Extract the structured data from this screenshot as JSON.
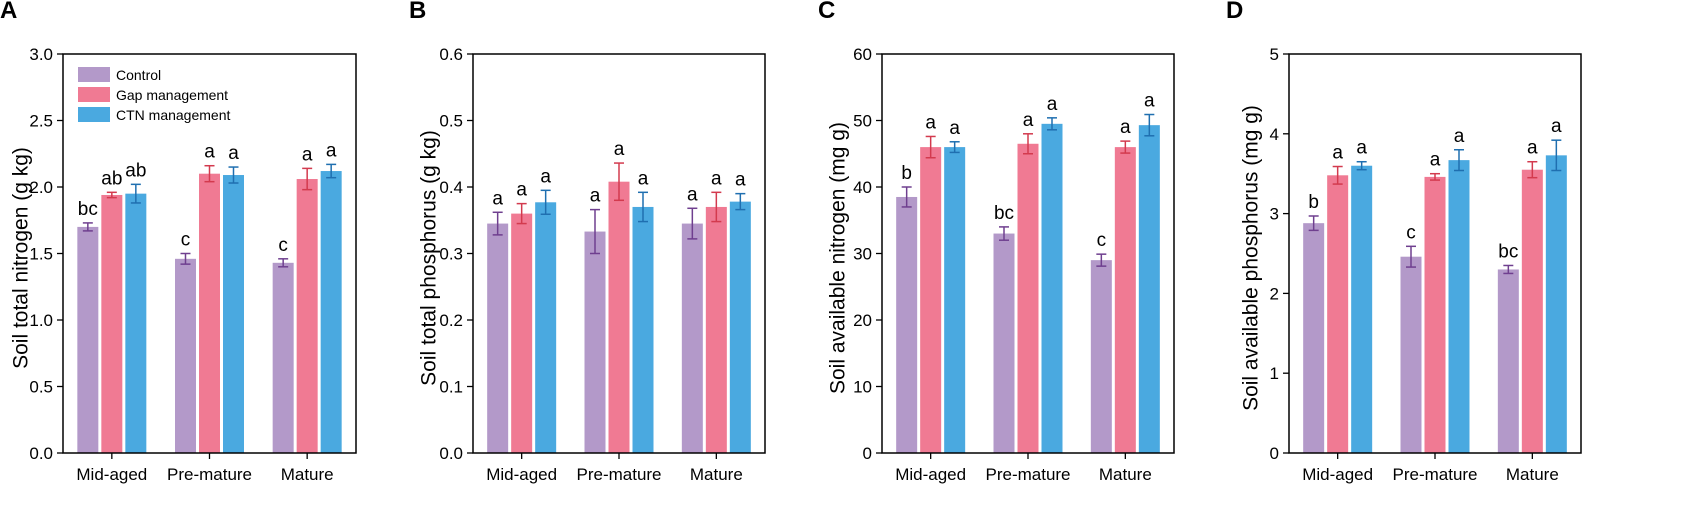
{
  "colors": {
    "control": "#b399c9",
    "control_err": "#6f3f8f",
    "gap": "#f07a93",
    "gap_err": "#d33a4e",
    "ctn": "#4aa9e0",
    "ctn_err": "#1f6fb0"
  },
  "legend": [
    "Control",
    "Gap management",
    "CTN management"
  ],
  "chart_data": [
    {
      "panel": "A",
      "type": "bar",
      "ylabel": "Soil total nitrogen (g kg)",
      "categories": [
        "Mid-aged",
        "Pre-mature",
        "Mature"
      ],
      "ylim": [
        0,
        3.0
      ],
      "yticks": [
        "0.0",
        "0.5",
        "1.0",
        "1.5",
        "2.0",
        "2.5",
        "3.0"
      ],
      "tick_step": 0.5,
      "series": [
        {
          "name": "Control",
          "values": [
            1.7,
            1.46,
            1.43
          ],
          "errors": [
            0.03,
            0.04,
            0.03
          ],
          "letters": [
            "bc",
            "c",
            "c"
          ]
        },
        {
          "name": "Gap management",
          "values": [
            1.94,
            2.1,
            2.06
          ],
          "errors": [
            0.02,
            0.06,
            0.08
          ],
          "letters": [
            "ab",
            "a",
            "a"
          ]
        },
        {
          "name": "CTN management",
          "values": [
            1.95,
            2.09,
            2.12
          ],
          "errors": [
            0.07,
            0.06,
            0.05
          ],
          "letters": [
            "ab",
            "a",
            "a"
          ]
        }
      ]
    },
    {
      "panel": "B",
      "type": "bar",
      "ylabel": "Soil total phosphorus (g kg)",
      "categories": [
        "Mid-aged",
        "Pre-mature",
        "Mature"
      ],
      "ylim": [
        0,
        0.6
      ],
      "yticks": [
        "0.0",
        "0.1",
        "0.2",
        "0.3",
        "0.4",
        "0.5",
        "0.6"
      ],
      "tick_step": 0.1,
      "series": [
        {
          "name": "Control",
          "values": [
            0.345,
            0.333,
            0.345
          ],
          "errors": [
            0.017,
            0.033,
            0.023
          ],
          "letters": [
            "a",
            "a",
            "a"
          ]
        },
        {
          "name": "Gap management",
          "values": [
            0.36,
            0.408,
            0.37
          ],
          "errors": [
            0.015,
            0.028,
            0.022
          ],
          "letters": [
            "a",
            "a",
            "a"
          ]
        },
        {
          "name": "CTN management",
          "values": [
            0.377,
            0.37,
            0.378
          ],
          "errors": [
            0.018,
            0.022,
            0.012
          ],
          "letters": [
            "a",
            "a",
            "a"
          ]
        }
      ]
    },
    {
      "panel": "C",
      "type": "bar",
      "ylabel": "Soil available nitrogen (mg g)",
      "categories": [
        "Mid-aged",
        "Pre-mature",
        "Mature"
      ],
      "ylim": [
        0,
        60
      ],
      "yticks": [
        "0",
        "10",
        "20",
        "30",
        "40",
        "50",
        "60"
      ],
      "tick_step": 10,
      "series": [
        {
          "name": "Control",
          "values": [
            38.5,
            33.0,
            29.0
          ],
          "errors": [
            1.5,
            1.0,
            0.9
          ],
          "letters": [
            "b",
            "bc",
            "c"
          ]
        },
        {
          "name": "Gap management",
          "values": [
            46.0,
            46.5,
            46.0
          ],
          "errors": [
            1.6,
            1.5,
            0.9
          ],
          "letters": [
            "a",
            "a",
            "a"
          ]
        },
        {
          "name": "CTN management",
          "values": [
            46.0,
            49.5,
            49.3
          ],
          "errors": [
            0.8,
            0.9,
            1.6
          ],
          "letters": [
            "a",
            "a",
            "a"
          ]
        }
      ]
    },
    {
      "panel": "D",
      "type": "bar",
      "ylabel": "Soil available phosphorus (mg g)",
      "categories": [
        "Mid-aged",
        "Pre-mature",
        "Mature"
      ],
      "ylim": [
        0,
        5
      ],
      "yticks": [
        "0",
        "1",
        "2",
        "3",
        "4",
        "5"
      ],
      "tick_step": 1,
      "series": [
        {
          "name": "Control",
          "values": [
            2.88,
            2.46,
            2.3
          ],
          "errors": [
            0.09,
            0.13,
            0.05
          ],
          "letters": [
            "b",
            "c",
            "bc"
          ]
        },
        {
          "name": "Gap management",
          "values": [
            3.48,
            3.46,
            3.55
          ],
          "errors": [
            0.11,
            0.04,
            0.1
          ],
          "letters": [
            "a",
            "a",
            "a"
          ]
        },
        {
          "name": "CTN management",
          "values": [
            3.6,
            3.67,
            3.73
          ],
          "errors": [
            0.05,
            0.13,
            0.19
          ],
          "letters": [
            "a",
            "a",
            "a"
          ]
        }
      ]
    }
  ]
}
